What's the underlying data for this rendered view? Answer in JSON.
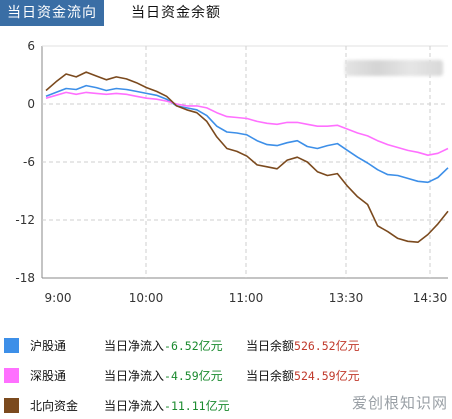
{
  "tabs": [
    {
      "label": "当日资金流向",
      "active": true
    },
    {
      "label": "当日资金余额",
      "active": false
    }
  ],
  "chart_data": {
    "type": "line",
    "x_ticks": [
      "9:00",
      "10:00",
      "11:00",
      "13:30",
      "14:30"
    ],
    "y_ticks": [
      "6",
      "0",
      "-6",
      "-12",
      "-18"
    ],
    "ylim": [
      -18,
      6
    ],
    "grid": true,
    "series": [
      {
        "name": "沪股通",
        "color": "#3d8fe8",
        "values": [
          0.8,
          1.2,
          1.6,
          1.5,
          1.9,
          1.7,
          1.4,
          1.6,
          1.5,
          1.3,
          1.1,
          0.9,
          0.5,
          -0.2,
          -0.4,
          -0.6,
          -1.2,
          -2.3,
          -2.9,
          -3.0,
          -3.2,
          -3.8,
          -4.2,
          -4.3,
          -4.0,
          -3.8,
          -4.4,
          -4.6,
          -4.3,
          -4.1,
          -4.8,
          -5.5,
          -6.1,
          -6.8,
          -7.3,
          -7.4,
          -7.7,
          -8.0,
          -8.1,
          -7.6,
          -6.6
        ]
      },
      {
        "name": "深股通",
        "color": "#ff70ff",
        "values": [
          0.6,
          0.9,
          1.2,
          1.0,
          1.2,
          1.1,
          1.0,
          1.1,
          1.0,
          0.8,
          0.6,
          0.5,
          0.3,
          0.0,
          -0.2,
          -0.2,
          -0.4,
          -0.9,
          -1.3,
          -1.4,
          -1.5,
          -1.8,
          -2.0,
          -2.1,
          -1.9,
          -1.9,
          -2.1,
          -2.3,
          -2.3,
          -2.2,
          -2.6,
          -3.0,
          -3.3,
          -3.8,
          -4.2,
          -4.5,
          -4.8,
          -5.0,
          -5.3,
          -5.1,
          -4.6
        ]
      },
      {
        "name": "北向资金",
        "color": "#7b4a1e",
        "values": [
          1.4,
          2.3,
          3.1,
          2.8,
          3.3,
          2.9,
          2.5,
          2.8,
          2.6,
          2.2,
          1.7,
          1.3,
          0.8,
          -0.2,
          -0.6,
          -0.9,
          -1.8,
          -3.4,
          -4.6,
          -4.9,
          -5.4,
          -6.3,
          -6.5,
          -6.7,
          -5.8,
          -5.5,
          -6.0,
          -7.0,
          -7.4,
          -7.2,
          -8.5,
          -9.6,
          -10.4,
          -12.6,
          -13.2,
          -13.9,
          -14.2,
          -14.3,
          -13.5,
          -12.4,
          -11.1
        ]
      }
    ]
  },
  "legend": [
    {
      "name": "沪股通",
      "color": "#3d8fe8",
      "inflow_label": "当日净流入",
      "inflow_value": "-6.52",
      "inflow_unit": "亿元",
      "balance_label": "当日余额",
      "balance_value": "526.52",
      "balance_unit": "亿元"
    },
    {
      "name": "深股通",
      "color": "#ff70ff",
      "inflow_label": "当日净流入",
      "inflow_value": "-4.59",
      "inflow_unit": "亿元",
      "balance_label": "当日余额",
      "balance_value": "524.59",
      "balance_unit": "亿元"
    },
    {
      "name": "北向资金",
      "color": "#7b4a1e",
      "inflow_label": "当日净流入",
      "inflow_value": "-11.11",
      "inflow_unit": "亿元",
      "balance_label": "",
      "balance_value": "",
      "balance_unit": ""
    }
  ],
  "watermark": "爱创根知识网"
}
